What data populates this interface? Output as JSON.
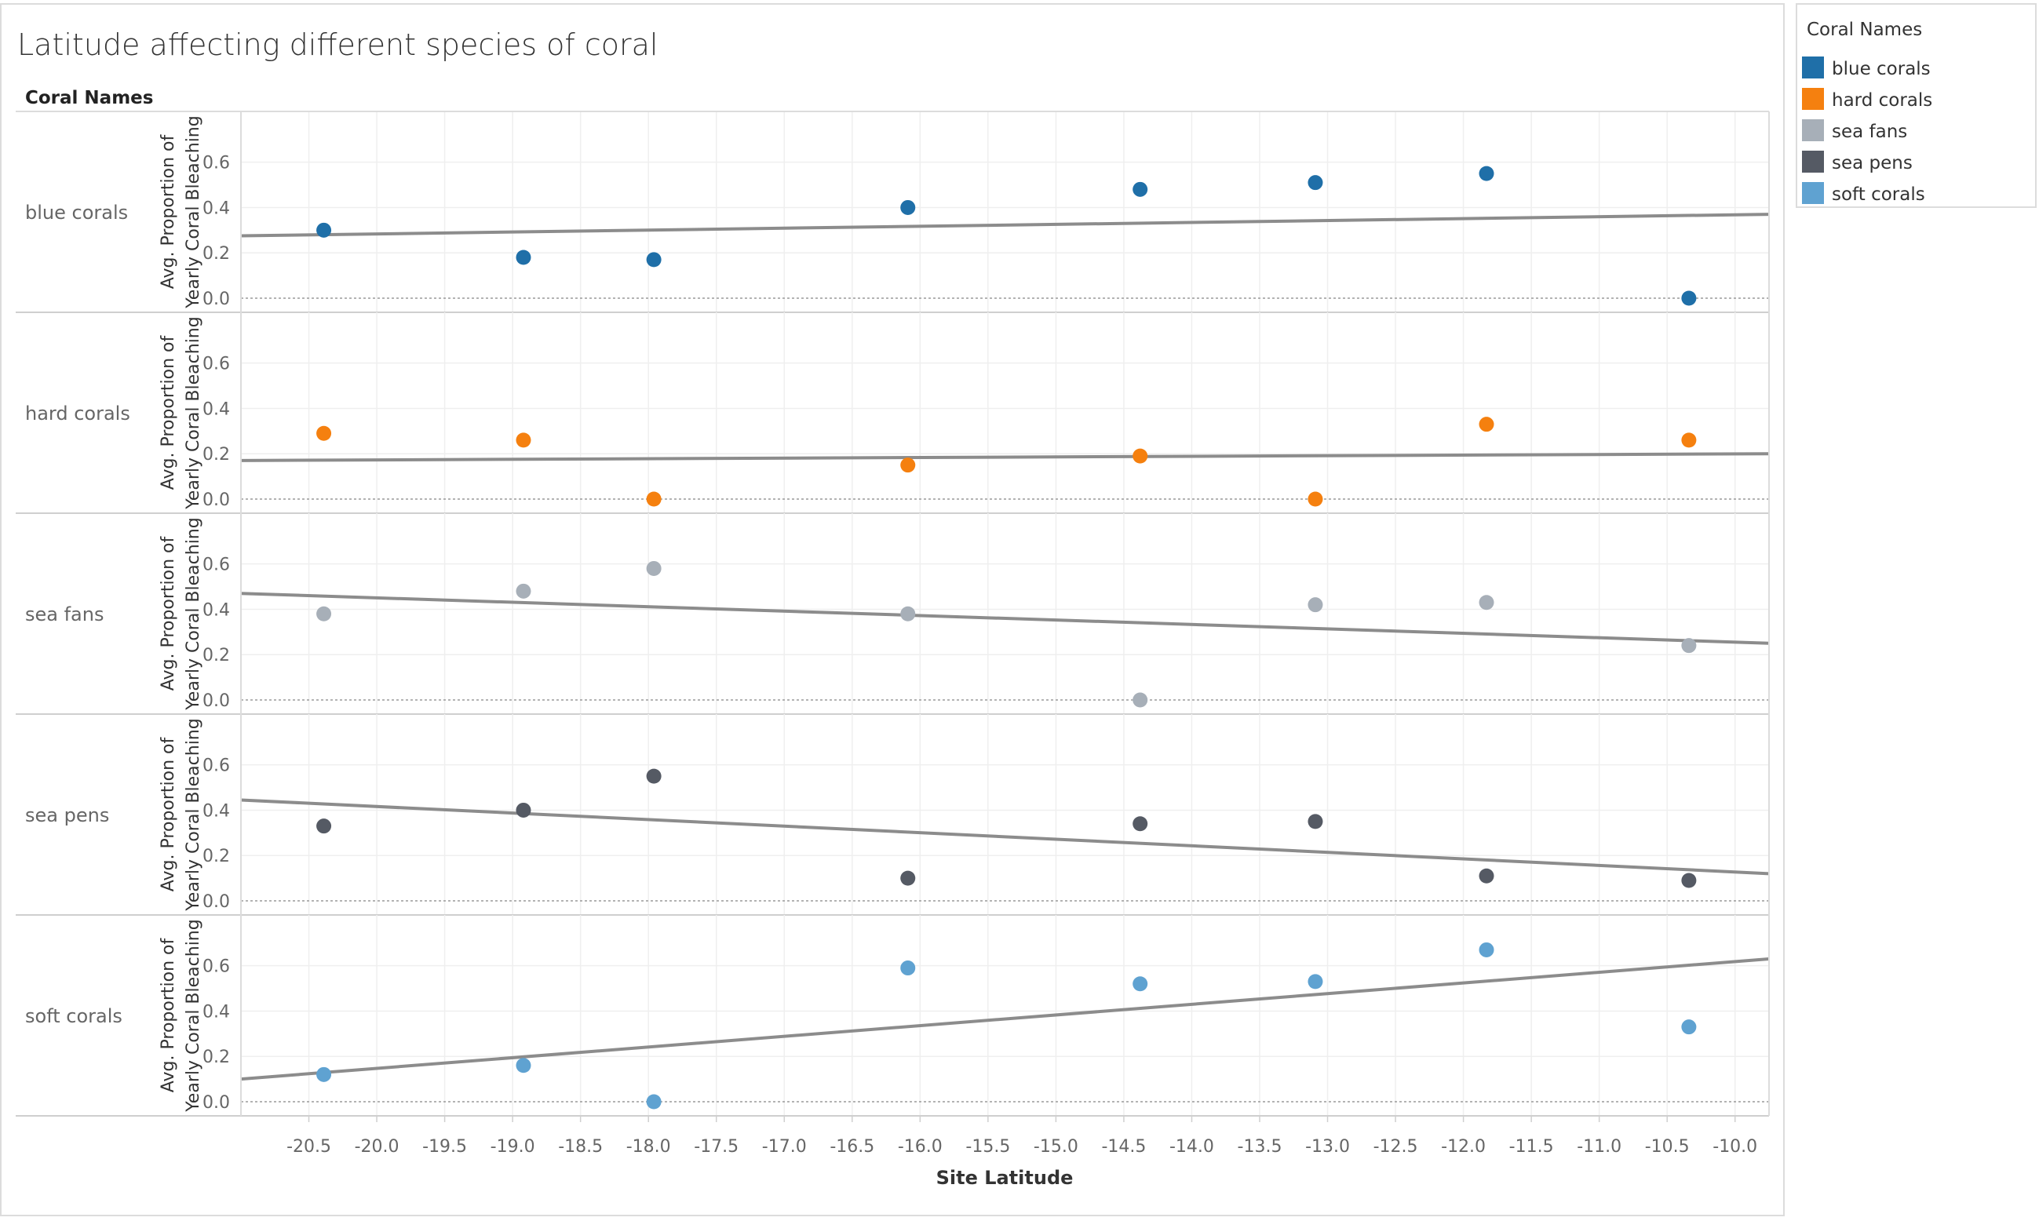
{
  "title": "Latitude affecting different species of coral",
  "row_header": "Coral Names",
  "y_axis_title_line1": "Avg. Proportion of",
  "y_axis_title_line2": "Yearly Coral Bleaching",
  "legend": {
    "title": "Coral Names",
    "items": [
      {
        "label": "blue corals",
        "color": "#1f6fa8"
      },
      {
        "label": "hard corals",
        "color": "#f5800f"
      },
      {
        "label": "sea fans",
        "color": "#a7afb8"
      },
      {
        "label": "sea pens",
        "color": "#555a64"
      },
      {
        "label": "soft corals",
        "color": "#5fa2d1"
      }
    ]
  },
  "chart_data": {
    "type": "scatter",
    "title": "Latitude affecting different species of coral",
    "xlabel": "Site Latitude",
    "ylabel": "Avg. Proportion of Yearly Coral Bleaching",
    "xlim": [
      -21.0,
      -9.75
    ],
    "ylim": [
      0.0,
      0.72
    ],
    "x_ticks": [
      -20.5,
      -20.0,
      -19.5,
      -19.0,
      -18.5,
      -18.0,
      -17.5,
      -17.0,
      -16.5,
      -16.0,
      -15.5,
      -15.0,
      -14.5,
      -14.0,
      -13.5,
      -13.0,
      -12.5,
      -12.0,
      -11.5,
      -11.0,
      -10.5,
      -10.0
    ],
    "x_tick_labels": [
      "-20.5",
      "-20.0",
      "-19.5",
      "-19.0",
      "-18.5",
      "-18.0",
      "-17.5",
      "-17.0",
      "-16.5",
      "-16.0",
      "-15.5",
      "-15.0",
      "-14.5",
      "-14.0",
      "-13.5",
      "-13.0",
      "-12.5",
      "-12.0",
      "-11.5",
      "-11.0",
      "-10.5",
      "-10.0"
    ],
    "y_ticks": [
      0.0,
      0.2,
      0.4,
      0.6
    ],
    "y_tick_labels": [
      "0.0",
      "0.2",
      "0.4",
      "0.6"
    ],
    "grid": true,
    "trend_lines": true,
    "series": [
      {
        "name": "blue corals",
        "color": "#1f6fa8",
        "x": [
          -20.39,
          -18.92,
          -17.96,
          -16.09,
          -14.38,
          -13.09,
          -11.83,
          -10.34
        ],
        "y": [
          0.3,
          0.18,
          0.17,
          0.4,
          0.48,
          0.51,
          0.55,
          0.0
        ],
        "trend": [
          0.275,
          0.37
        ]
      },
      {
        "name": "hard corals",
        "color": "#f5800f",
        "x": [
          -20.39,
          -18.92,
          -17.96,
          -16.09,
          -14.38,
          -13.09,
          -11.83,
          -10.34
        ],
        "y": [
          0.29,
          0.26,
          0.0,
          0.15,
          0.19,
          0.0,
          0.33,
          0.26
        ],
        "trend": [
          0.17,
          0.2
        ]
      },
      {
        "name": "sea fans",
        "color": "#a7afb8",
        "x": [
          -20.39,
          -18.92,
          -17.96,
          -16.09,
          -14.38,
          -13.09,
          -11.83,
          -10.34
        ],
        "y": [
          0.38,
          0.48,
          0.58,
          0.38,
          0.0,
          0.42,
          0.43,
          0.24
        ],
        "trend": [
          0.47,
          0.25
        ]
      },
      {
        "name": "sea pens",
        "color": "#555a64",
        "x": [
          -20.39,
          -18.92,
          -17.96,
          -16.09,
          -14.38,
          -13.09,
          -11.83,
          -10.34
        ],
        "y": [
          0.33,
          0.4,
          0.55,
          0.1,
          0.34,
          0.35,
          0.11,
          0.09
        ],
        "trend": [
          0.445,
          0.12
        ]
      },
      {
        "name": "soft corals",
        "color": "#5fa2d1",
        "x": [
          -20.39,
          -18.92,
          -17.96,
          -16.09,
          -14.38,
          -13.09,
          -11.83,
          -10.34
        ],
        "y": [
          0.12,
          0.16,
          0.0,
          0.59,
          0.52,
          0.53,
          0.67,
          0.33
        ],
        "trend": [
          0.1,
          0.63
        ]
      }
    ]
  }
}
